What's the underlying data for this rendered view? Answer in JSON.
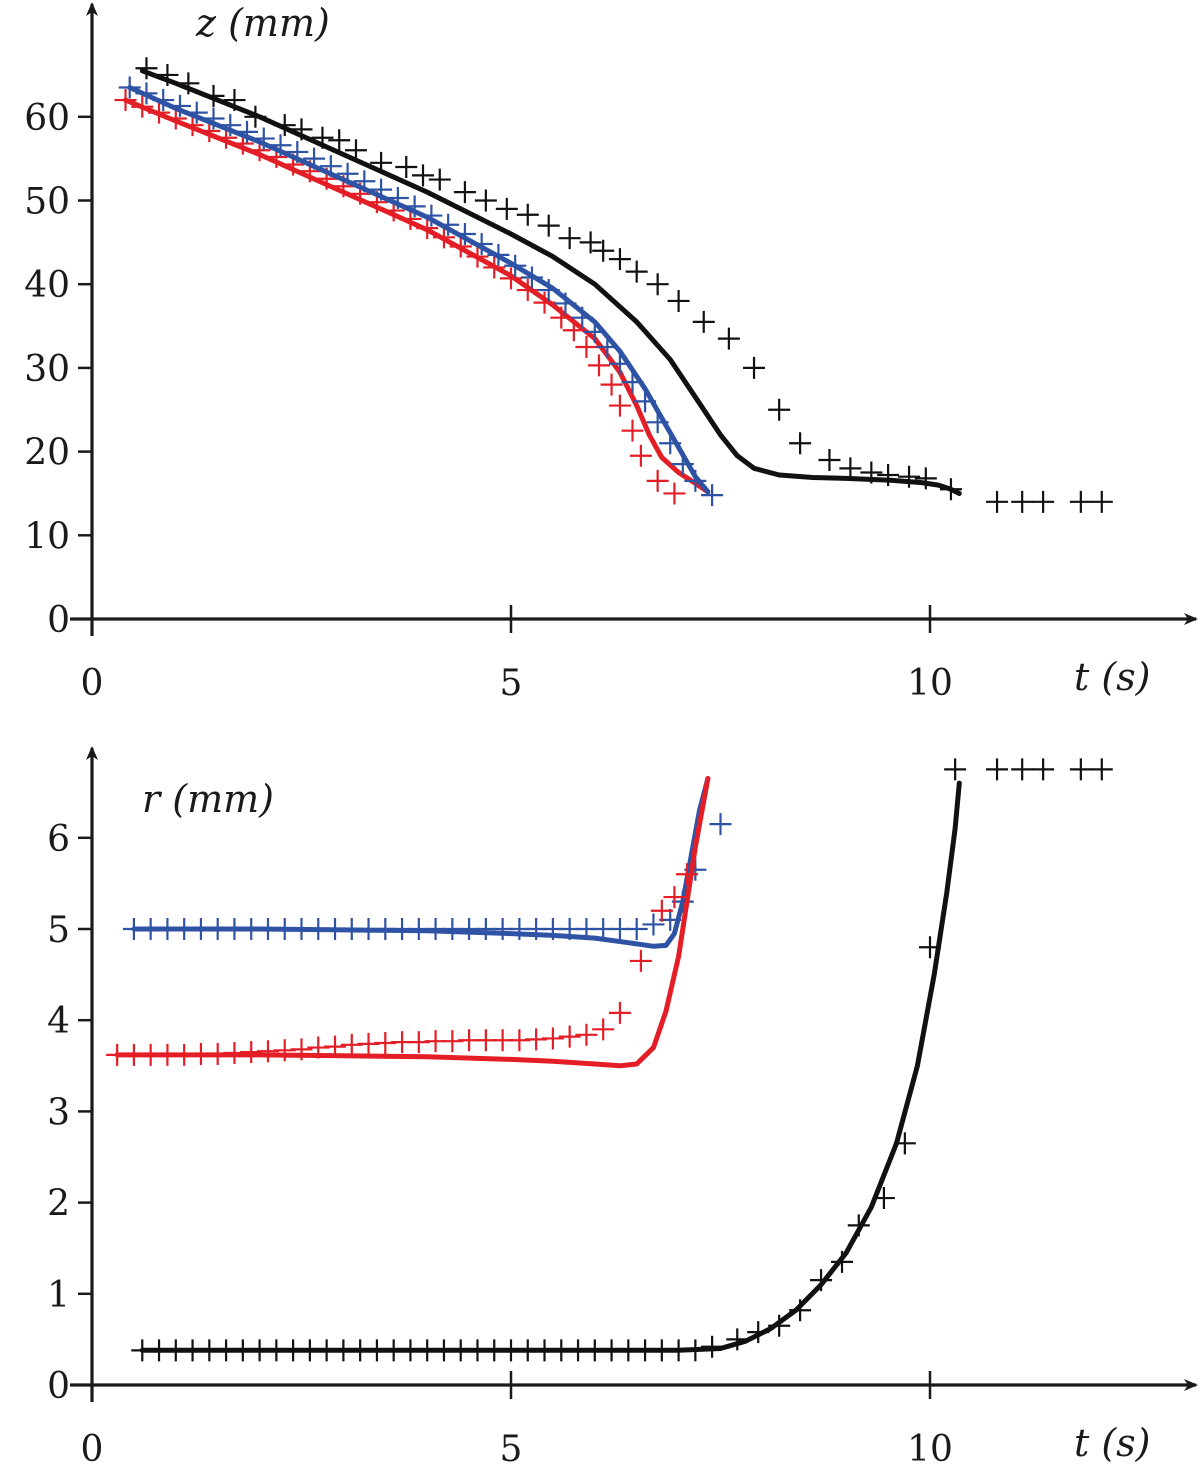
{
  "chart_data": [
    {
      "type": "line",
      "panel": "top",
      "xlabel": "t (s)",
      "ylabel": "z (mm)",
      "xlim": [
        0,
        13
      ],
      "ylim": [
        0,
        70
      ],
      "xticks": [
        0,
        5,
        10
      ],
      "yticks": [
        0,
        10,
        20,
        30,
        40,
        50,
        60
      ],
      "colors": {
        "red": "#e41e26",
        "blue": "#2f53a4",
        "black": "#111111"
      },
      "series": [
        {
          "color": "red",
          "style": "line",
          "x": [
            0.4,
            1,
            2,
            3,
            4,
            5,
            5.5,
            6.0,
            6.3,
            6.5,
            6.65,
            6.8,
            7.0,
            7.2,
            7.35
          ],
          "y": [
            62,
            59.5,
            55.5,
            51,
            46.5,
            41,
            37.5,
            33.5,
            29.5,
            25.5,
            22,
            19.3,
            17.5,
            16.2,
            15.2
          ]
        },
        {
          "color": "red",
          "style": "marker",
          "x": [
            0.4,
            0.6,
            0.8,
            1.0,
            1.2,
            1.4,
            1.6,
            1.8,
            2.0,
            2.2,
            2.4,
            2.6,
            2.8,
            3.0,
            3.2,
            3.4,
            3.6,
            3.8,
            4.0,
            4.2,
            4.4,
            4.6,
            4.8,
            5.0,
            5.2,
            5.4,
            5.6,
            5.75,
            5.9,
            6.05,
            6.2,
            6.3,
            6.45,
            6.55,
            6.75,
            6.95
          ],
          "y": [
            62,
            61.2,
            60.5,
            59.8,
            59,
            58.3,
            57.5,
            56.8,
            56,
            55.2,
            54.3,
            53.5,
            52.6,
            51.7,
            50.8,
            49.8,
            48.8,
            47.8,
            46.7,
            45.6,
            44.5,
            43.3,
            42,
            40.7,
            39.3,
            37.8,
            36,
            34.5,
            32.5,
            30.3,
            28,
            25.5,
            22.5,
            19.5,
            16.5,
            15
          ]
        },
        {
          "color": "blue",
          "style": "line",
          "x": [
            0.45,
            1,
            2,
            3,
            4,
            5,
            5.5,
            6.0,
            6.3,
            6.6,
            6.8,
            7.0,
            7.2,
            7.35
          ],
          "y": [
            63.5,
            61,
            57,
            52.5,
            48,
            42.5,
            39.5,
            35.5,
            32,
            27.5,
            24,
            20.5,
            17,
            15.2
          ]
        },
        {
          "color": "blue",
          "style": "marker",
          "x": [
            0.45,
            0.65,
            0.85,
            1.05,
            1.25,
            1.45,
            1.65,
            1.85,
            2.05,
            2.25,
            2.45,
            2.65,
            2.85,
            3.05,
            3.25,
            3.45,
            3.65,
            3.85,
            4.05,
            4.25,
            4.45,
            4.65,
            4.85,
            5.05,
            5.25,
            5.45,
            5.65,
            5.85,
            6.0,
            6.15,
            6.3,
            6.45,
            6.6,
            6.75,
            6.9,
            7.05,
            7.2,
            7.4
          ],
          "y": [
            63.5,
            62.8,
            62,
            61.3,
            60.5,
            59.8,
            59,
            58.2,
            57.4,
            56.6,
            55.8,
            55,
            54.1,
            53.2,
            52.3,
            51.3,
            50.3,
            49.3,
            48.2,
            47.1,
            46,
            44.8,
            43.5,
            42.2,
            40.8,
            39.3,
            37.7,
            36,
            34.3,
            32.5,
            30.5,
            28.3,
            26,
            23.5,
            21,
            18.5,
            16.5,
            14.8
          ]
        },
        {
          "color": "black",
          "style": "line",
          "x": [
            0.6,
            1,
            2,
            3,
            4,
            5,
            5.5,
            6,
            6.5,
            6.9,
            7.2,
            7.5,
            7.7,
            7.9,
            8.2,
            8.6,
            9,
            9.5,
            9.9,
            10.1,
            10.25,
            10.35
          ],
          "y": [
            65.5,
            64,
            60,
            55.5,
            51,
            46,
            43.3,
            40,
            35.5,
            31,
            26.5,
            22,
            19.5,
            18,
            17.2,
            16.9,
            16.8,
            16.6,
            16.3,
            16,
            15.5,
            15
          ]
        },
        {
          "color": "black",
          "style": "marker",
          "x": [
            0.65,
            0.9,
            1.15,
            1.45,
            1.7,
            1.95,
            2.3,
            2.5,
            2.75,
            2.95,
            3.15,
            3.45,
            3.75,
            3.95,
            4.15,
            4.45,
            4.7,
            4.95,
            5.2,
            5.45,
            5.7,
            5.95,
            6.1,
            6.3,
            6.5,
            6.75,
            7.0,
            7.3,
            7.6,
            7.9,
            8.2,
            8.45,
            8.8,
            9.05,
            9.3,
            9.5,
            9.75,
            9.95,
            10.25,
            10.8,
            11.1,
            11.35,
            11.8,
            12.05
          ],
          "y": [
            65.8,
            65,
            64,
            62.5,
            62,
            60,
            59,
            58.5,
            57.5,
            57.2,
            56,
            54.5,
            54,
            53,
            52.5,
            51,
            50,
            49,
            48.3,
            47,
            45.5,
            45,
            44,
            43,
            41.5,
            40,
            38,
            35.5,
            33.5,
            30,
            25,
            21,
            19,
            18,
            17.5,
            17.2,
            17,
            16.8,
            15.5,
            14,
            14,
            14,
            14,
            14
          ]
        }
      ]
    },
    {
      "type": "line",
      "panel": "bottom",
      "xlabel": "t (s)",
      "ylabel": "r (mm)",
      "xlim": [
        0,
        13
      ],
      "ylim": [
        0,
        7
      ],
      "xticks": [
        0,
        5,
        10
      ],
      "yticks": [
        0,
        1,
        2,
        3,
        4,
        5,
        6
      ],
      "colors": {
        "red": "#e41e26",
        "blue": "#2f53a4",
        "black": "#111111"
      },
      "series": [
        {
          "color": "blue",
          "style": "line",
          "x": [
            0.5,
            1,
            2,
            3,
            4,
            5,
            5.5,
            6.0,
            6.4,
            6.7,
            6.85,
            6.95,
            7.05,
            7.15,
            7.25,
            7.35
          ],
          "y": [
            5.0,
            5.0,
            5.0,
            4.99,
            4.98,
            4.95,
            4.93,
            4.9,
            4.85,
            4.81,
            4.82,
            4.95,
            5.3,
            5.8,
            6.3,
            6.65
          ]
        },
        {
          "color": "blue",
          "style": "marker",
          "x": [
            0.5,
            0.7,
            0.9,
            1.1,
            1.3,
            1.5,
            1.7,
            1.9,
            2.1,
            2.3,
            2.5,
            2.7,
            2.9,
            3.1,
            3.3,
            3.5,
            3.7,
            3.9,
            4.1,
            4.3,
            4.5,
            4.7,
            4.9,
            5.1,
            5.3,
            5.5,
            5.7,
            5.9,
            6.1,
            6.3,
            6.5,
            6.7,
            6.9,
            7.05,
            7.2,
            7.5
          ],
          "y": [
            5.0,
            5.0,
            5.0,
            5.0,
            5.0,
            5.0,
            5.0,
            5.0,
            5.0,
            5.0,
            5.0,
            5.0,
            5.0,
            5.0,
            5.0,
            5.0,
            5.0,
            5.0,
            5.0,
            5.0,
            5.0,
            5.0,
            5.0,
            5.0,
            5.0,
            5.0,
            5.0,
            5.0,
            5.0,
            5.0,
            5.0,
            5.05,
            5.1,
            5.3,
            5.65,
            6.15
          ]
        },
        {
          "color": "red",
          "style": "line",
          "x": [
            0.3,
            1,
            2,
            3,
            4,
            5,
            5.5,
            6.0,
            6.3,
            6.5,
            6.7,
            6.85,
            7.0,
            7.1,
            7.2,
            7.3,
            7.35
          ],
          "y": [
            3.62,
            3.62,
            3.62,
            3.61,
            3.6,
            3.57,
            3.55,
            3.52,
            3.5,
            3.52,
            3.7,
            4.1,
            4.7,
            5.3,
            5.9,
            6.4,
            6.65
          ]
        },
        {
          "color": "red",
          "style": "marker",
          "x": [
            0.3,
            0.5,
            0.7,
            0.9,
            1.1,
            1.3,
            1.5,
            1.7,
            1.9,
            2.1,
            2.3,
            2.5,
            2.7,
            2.9,
            3.1,
            3.3,
            3.5,
            3.7,
            3.9,
            4.1,
            4.3,
            4.5,
            4.7,
            4.9,
            5.1,
            5.3,
            5.5,
            5.7,
            5.9,
            6.1,
            6.3,
            6.55,
            6.8,
            6.95,
            7.1
          ],
          "y": [
            3.62,
            3.62,
            3.62,
            3.62,
            3.62,
            3.63,
            3.63,
            3.64,
            3.65,
            3.66,
            3.67,
            3.68,
            3.7,
            3.71,
            3.73,
            3.74,
            3.75,
            3.76,
            3.76,
            3.77,
            3.77,
            3.78,
            3.78,
            3.78,
            3.78,
            3.79,
            3.8,
            3.82,
            3.84,
            3.9,
            4.08,
            4.65,
            5.2,
            5.35,
            5.6
          ]
        },
        {
          "color": "black",
          "style": "line",
          "x": [
            0.6,
            1,
            2,
            3,
            4,
            5,
            6,
            7,
            7.5,
            7.8,
            8.1,
            8.4,
            8.7,
            9.0,
            9.3,
            9.6,
            9.85,
            10.05,
            10.2,
            10.3,
            10.35
          ],
          "y": [
            0.38,
            0.38,
            0.38,
            0.38,
            0.38,
            0.38,
            0.38,
            0.38,
            0.4,
            0.48,
            0.62,
            0.82,
            1.1,
            1.45,
            1.95,
            2.65,
            3.5,
            4.5,
            5.4,
            6.1,
            6.6
          ]
        },
        {
          "color": "black",
          "style": "marker",
          "x": [
            0.6,
            0.8,
            1.0,
            1.2,
            1.4,
            1.6,
            1.8,
            2.0,
            2.2,
            2.4,
            2.6,
            2.8,
            3.0,
            3.2,
            3.4,
            3.6,
            3.8,
            4.0,
            4.2,
            4.4,
            4.6,
            4.8,
            5.0,
            5.2,
            5.4,
            5.6,
            5.8,
            6.0,
            6.2,
            6.4,
            6.6,
            6.8,
            7.0,
            7.2,
            7.4,
            7.7,
            7.95,
            8.2,
            8.45,
            8.7,
            8.95,
            9.15,
            9.45,
            9.7,
            10.0,
            10.3,
            10.8,
            11.1,
            11.35,
            11.8,
            12.05
          ],
          "y": [
            0.38,
            0.38,
            0.38,
            0.38,
            0.38,
            0.38,
            0.38,
            0.38,
            0.38,
            0.38,
            0.38,
            0.38,
            0.38,
            0.38,
            0.38,
            0.38,
            0.38,
            0.38,
            0.38,
            0.38,
            0.38,
            0.38,
            0.38,
            0.38,
            0.38,
            0.38,
            0.38,
            0.38,
            0.38,
            0.38,
            0.38,
            0.38,
            0.38,
            0.38,
            0.42,
            0.5,
            0.58,
            0.65,
            0.82,
            1.15,
            1.35,
            1.75,
            2.05,
            2.65,
            4.8,
            6.75,
            6.75,
            6.75,
            6.75,
            6.75,
            6.75
          ]
        }
      ]
    }
  ]
}
